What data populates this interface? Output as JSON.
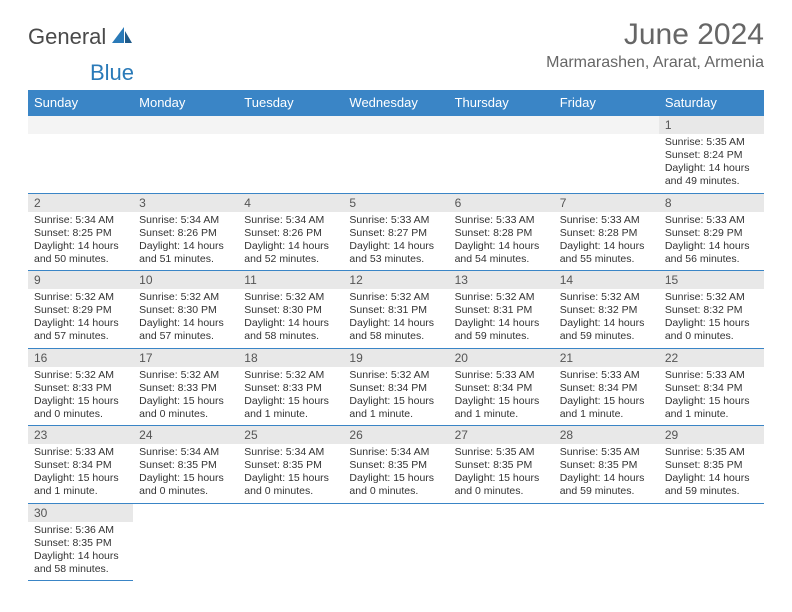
{
  "brand": {
    "name1": "General",
    "name2": "Blue"
  },
  "title": "June 2024",
  "location": "Marmarashen, Ararat, Armenia",
  "colors": {
    "header_bg": "#3a85c6",
    "header_text": "#ffffff",
    "daynum_bg": "#e8e8e8",
    "border": "#3a85c6",
    "title_color": "#666666",
    "logo_gray": "#4a4a4a",
    "logo_blue": "#2a7ab8"
  },
  "weekdays": [
    "Sunday",
    "Monday",
    "Tuesday",
    "Wednesday",
    "Thursday",
    "Friday",
    "Saturday"
  ],
  "weeks": [
    [
      null,
      null,
      null,
      null,
      null,
      null,
      {
        "d": "1",
        "sr": "5:35 AM",
        "ss": "8:24 PM",
        "dl": "14 hours and 49 minutes."
      }
    ],
    [
      {
        "d": "2",
        "sr": "5:34 AM",
        "ss": "8:25 PM",
        "dl": "14 hours and 50 minutes."
      },
      {
        "d": "3",
        "sr": "5:34 AM",
        "ss": "8:26 PM",
        "dl": "14 hours and 51 minutes."
      },
      {
        "d": "4",
        "sr": "5:34 AM",
        "ss": "8:26 PM",
        "dl": "14 hours and 52 minutes."
      },
      {
        "d": "5",
        "sr": "5:33 AM",
        "ss": "8:27 PM",
        "dl": "14 hours and 53 minutes."
      },
      {
        "d": "6",
        "sr": "5:33 AM",
        "ss": "8:28 PM",
        "dl": "14 hours and 54 minutes."
      },
      {
        "d": "7",
        "sr": "5:33 AM",
        "ss": "8:28 PM",
        "dl": "14 hours and 55 minutes."
      },
      {
        "d": "8",
        "sr": "5:33 AM",
        "ss": "8:29 PM",
        "dl": "14 hours and 56 minutes."
      }
    ],
    [
      {
        "d": "9",
        "sr": "5:32 AM",
        "ss": "8:29 PM",
        "dl": "14 hours and 57 minutes."
      },
      {
        "d": "10",
        "sr": "5:32 AM",
        "ss": "8:30 PM",
        "dl": "14 hours and 57 minutes."
      },
      {
        "d": "11",
        "sr": "5:32 AM",
        "ss": "8:30 PM",
        "dl": "14 hours and 58 minutes."
      },
      {
        "d": "12",
        "sr": "5:32 AM",
        "ss": "8:31 PM",
        "dl": "14 hours and 58 minutes."
      },
      {
        "d": "13",
        "sr": "5:32 AM",
        "ss": "8:31 PM",
        "dl": "14 hours and 59 minutes."
      },
      {
        "d": "14",
        "sr": "5:32 AM",
        "ss": "8:32 PM",
        "dl": "14 hours and 59 minutes."
      },
      {
        "d": "15",
        "sr": "5:32 AM",
        "ss": "8:32 PM",
        "dl": "15 hours and 0 minutes."
      }
    ],
    [
      {
        "d": "16",
        "sr": "5:32 AM",
        "ss": "8:33 PM",
        "dl": "15 hours and 0 minutes."
      },
      {
        "d": "17",
        "sr": "5:32 AM",
        "ss": "8:33 PM",
        "dl": "15 hours and 0 minutes."
      },
      {
        "d": "18",
        "sr": "5:32 AM",
        "ss": "8:33 PM",
        "dl": "15 hours and 1 minute."
      },
      {
        "d": "19",
        "sr": "5:32 AM",
        "ss": "8:34 PM",
        "dl": "15 hours and 1 minute."
      },
      {
        "d": "20",
        "sr": "5:33 AM",
        "ss": "8:34 PM",
        "dl": "15 hours and 1 minute."
      },
      {
        "d": "21",
        "sr": "5:33 AM",
        "ss": "8:34 PM",
        "dl": "15 hours and 1 minute."
      },
      {
        "d": "22",
        "sr": "5:33 AM",
        "ss": "8:34 PM",
        "dl": "15 hours and 1 minute."
      }
    ],
    [
      {
        "d": "23",
        "sr": "5:33 AM",
        "ss": "8:34 PM",
        "dl": "15 hours and 1 minute."
      },
      {
        "d": "24",
        "sr": "5:34 AM",
        "ss": "8:35 PM",
        "dl": "15 hours and 0 minutes."
      },
      {
        "d": "25",
        "sr": "5:34 AM",
        "ss": "8:35 PM",
        "dl": "15 hours and 0 minutes."
      },
      {
        "d": "26",
        "sr": "5:34 AM",
        "ss": "8:35 PM",
        "dl": "15 hours and 0 minutes."
      },
      {
        "d": "27",
        "sr": "5:35 AM",
        "ss": "8:35 PM",
        "dl": "15 hours and 0 minutes."
      },
      {
        "d": "28",
        "sr": "5:35 AM",
        "ss": "8:35 PM",
        "dl": "14 hours and 59 minutes."
      },
      {
        "d": "29",
        "sr": "5:35 AM",
        "ss": "8:35 PM",
        "dl": "14 hours and 59 minutes."
      }
    ],
    [
      {
        "d": "30",
        "sr": "5:36 AM",
        "ss": "8:35 PM",
        "dl": "14 hours and 58 minutes."
      },
      null,
      null,
      null,
      null,
      null,
      null
    ]
  ],
  "labels": {
    "sunrise": "Sunrise:",
    "sunset": "Sunset:",
    "daylight": "Daylight:"
  }
}
